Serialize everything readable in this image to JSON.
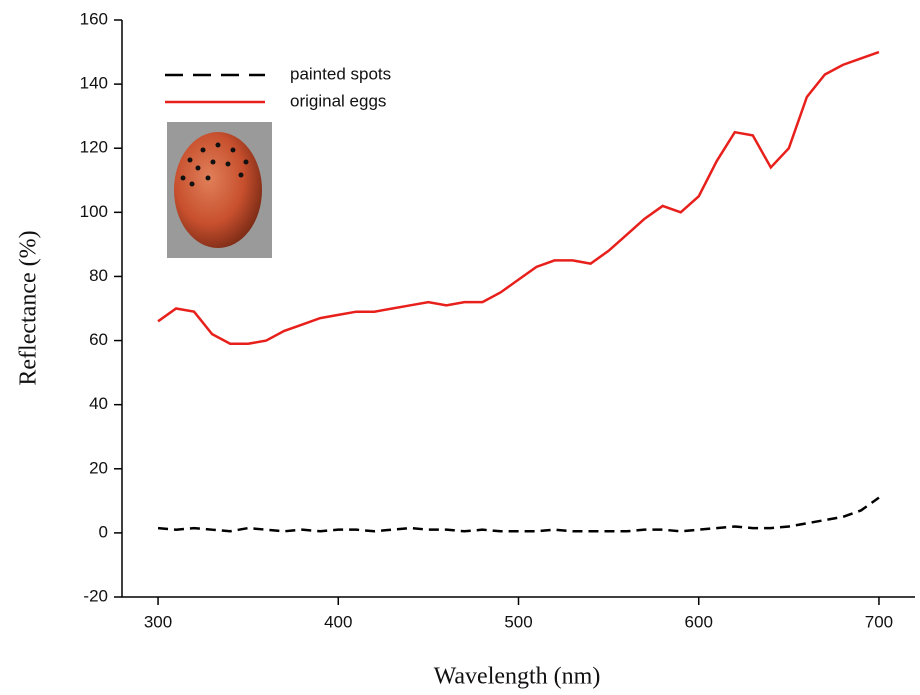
{
  "chart_data": {
    "type": "line",
    "x_label": "Wavelength (nm)",
    "y_label": "Reflectance (%)",
    "x": [
      300,
      310,
      320,
      330,
      340,
      350,
      360,
      370,
      380,
      390,
      400,
      410,
      420,
      430,
      440,
      450,
      460,
      470,
      480,
      490,
      500,
      510,
      520,
      530,
      540,
      550,
      560,
      570,
      580,
      590,
      600,
      610,
      620,
      630,
      640,
      650,
      660,
      670,
      680,
      690,
      700
    ],
    "series": [
      {
        "name": "painted spots",
        "color": "#000000",
        "style": "dashed",
        "values": [
          1.5,
          1,
          1.5,
          1,
          0.5,
          1.5,
          1,
          0.5,
          1,
          0.5,
          1,
          1,
          0.5,
          1,
          1.5,
          1,
          1,
          0.5,
          1,
          0.5,
          0.5,
          0.5,
          1,
          0.5,
          0.5,
          0.5,
          0.5,
          1,
          1,
          0.5,
          1,
          1.5,
          2,
          1.5,
          1.5,
          2,
          3,
          4,
          5,
          7,
          11
        ]
      },
      {
        "name": "original eggs",
        "color": "#e8201c",
        "style": "solid",
        "values": [
          66,
          70,
          69,
          62,
          59,
          59,
          60,
          63,
          65,
          67,
          68,
          69,
          69,
          70,
          71,
          72,
          71,
          72,
          72,
          75,
          79,
          83,
          85,
          85,
          84,
          88,
          93,
          98,
          102,
          100,
          105,
          116,
          125,
          124,
          114,
          120,
          136,
          143,
          146,
          148,
          150
        ]
      }
    ],
    "xlim": [
      280,
      720
    ],
    "xticks": [
      300,
      400,
      500,
      600,
      700
    ],
    "ylim": [
      -20,
      160
    ],
    "yticks": [
      -20,
      0,
      20,
      40,
      60,
      80,
      100,
      120,
      140,
      160
    ],
    "legend": "upper-left",
    "grid": false
  }
}
